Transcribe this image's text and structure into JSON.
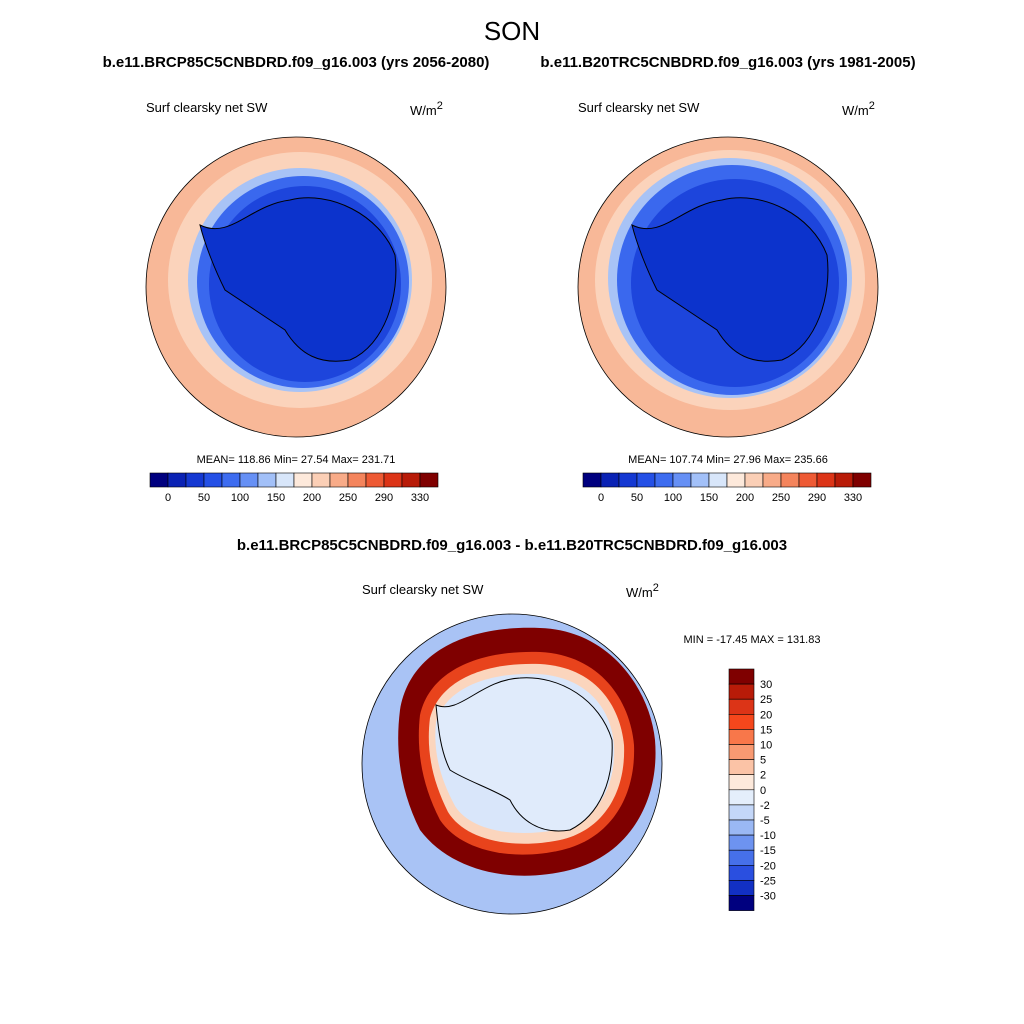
{
  "title": "SON",
  "panels": [
    {
      "case": "b.e11.BRCP85C5CNBDRD.f09_g16.003 (yrs 2056-2080)",
      "variable": "Surf clearsky net SW",
      "units": "W/m",
      "units_sup": "2",
      "stats": "MEAN= 118.86  Min=  27.54  Max= 231.71"
    },
    {
      "case": "b.e11.B20TRC5CNBDRD.f09_g16.003 (yrs 1981-2005)",
      "variable": "Surf clearsky net SW",
      "units": "W/m",
      "units_sup": "2",
      "stats": "MEAN= 107.74  Min=  27.96  Max= 235.66"
    }
  ],
  "colorbar": {
    "ticks": [
      0,
      50,
      100,
      150,
      200,
      250,
      290,
      330
    ],
    "colors": [
      "#00007f",
      "#0a22b4",
      "#1438d2",
      "#2450e6",
      "#3d6cf0",
      "#6690f5",
      "#a2c0f8",
      "#d8e6fa",
      "#fde9db",
      "#fbcfb6",
      "#f8ab88",
      "#f4845c",
      "#ee5a34",
      "#dc3417",
      "#b81b08",
      "#7f0000"
    ]
  },
  "difference": {
    "case": "b.e11.BRCP85C5CNBDRD.f09_g16.003 - b.e11.B20TRC5CNBDRD.f09_g16.003",
    "variable": "Surf clearsky net SW",
    "units": "W/m",
    "units_sup": "2",
    "stats": "MIN = -17.45 MAX = 131.83",
    "colorbar": {
      "ticks": [
        30,
        25,
        20,
        15,
        10,
        5,
        2,
        0,
        -2,
        -5,
        -10,
        -15,
        -20,
        -25,
        -30
      ],
      "colors": [
        "#7f0000",
        "#b81b08",
        "#dc3417",
        "#f5471c",
        "#f8774a",
        "#f89a72",
        "#fbc3a6",
        "#fde9db",
        "#e4eefb",
        "#c4d7f8",
        "#9ab8f4",
        "#6d93f0",
        "#4670ea",
        "#2a4fe0",
        "#1230c4",
        "#00007f"
      ]
    }
  }
}
